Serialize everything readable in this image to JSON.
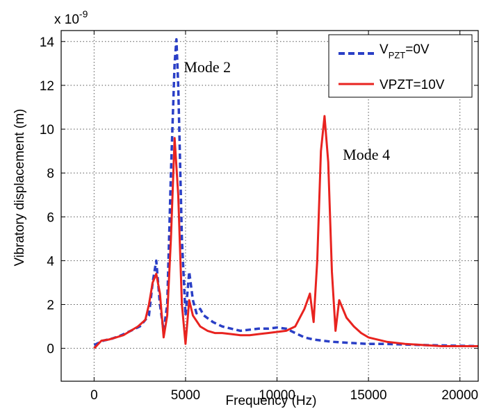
{
  "chart_data": {
    "type": "line",
    "title": "",
    "xlabel": "Frequency (Hz)",
    "ylabel": "Vibratory displacement (m)",
    "y_multiplier": "x 10",
    "y_multiplier_exponent": "-9",
    "xlim": [
      -1800,
      21000
    ],
    "ylim": [
      -1.5,
      14.5
    ],
    "x_ticks": [
      0,
      5000,
      10000,
      15000,
      20000
    ],
    "x_tick_labels": [
      "0",
      "5000",
      "10000",
      "15000",
      "20000"
    ],
    "y_ticks": [
      0,
      2,
      4,
      6,
      8,
      10,
      12,
      14
    ],
    "y_tick_labels": [
      "0",
      "2",
      "4",
      "6",
      "8",
      "10",
      "12",
      "14"
    ],
    "grid": true,
    "legend_position": "top-right",
    "series": [
      {
        "name_main": "V",
        "name_sub": "PZT",
        "name_rest": "=0V",
        "color": "#2a3fc6",
        "style": "dashed",
        "x": [
          0,
          500,
          1000,
          1500,
          2000,
          2500,
          2800,
          3000,
          3200,
          3400,
          3600,
          3800,
          4000,
          4200,
          4400,
          4500,
          4600,
          4800,
          5000,
          5200,
          5400,
          5600,
          5800,
          6000,
          6500,
          7000,
          7500,
          8000,
          8500,
          9000,
          9500,
          10000,
          10500,
          11000,
          11500,
          12000,
          12500,
          13000,
          14000,
          15000,
          16000,
          18000,
          21000
        ],
        "y": [
          0.15,
          0.35,
          0.45,
          0.6,
          0.8,
          1.0,
          1.3,
          1.5,
          3.0,
          4.0,
          2.0,
          0.8,
          2.0,
          8.0,
          13.0,
          14.1,
          12.0,
          5.0,
          1.5,
          3.5,
          2.2,
          1.6,
          1.8,
          1.5,
          1.2,
          1.0,
          0.9,
          0.8,
          0.85,
          0.9,
          0.9,
          0.95,
          0.9,
          0.7,
          0.5,
          0.4,
          0.35,
          0.3,
          0.25,
          0.2,
          0.2,
          0.15,
          0.1
        ]
      },
      {
        "name": "VPZT=10V",
        "color": "#e8231f",
        "style": "solid",
        "x": [
          0,
          400,
          800,
          1200,
          1600,
          2000,
          2400,
          2800,
          3000,
          3200,
          3400,
          3600,
          3800,
          4000,
          4200,
          4400,
          4600,
          4800,
          5000,
          5200,
          5400,
          5800,
          6200,
          6600,
          7000,
          7500,
          8000,
          8500,
          9000,
          9500,
          10000,
          10500,
          11000,
          11500,
          11800,
          12000,
          12200,
          12400,
          12600,
          12800,
          13000,
          13200,
          13400,
          13800,
          14200,
          14600,
          15000,
          16000,
          17000,
          18000,
          19000,
          20000,
          21000
        ],
        "y": [
          0.0,
          0.35,
          0.4,
          0.5,
          0.6,
          0.8,
          1.0,
          1.3,
          2.0,
          3.0,
          3.4,
          2.5,
          0.5,
          1.5,
          5.0,
          9.6,
          7.0,
          2.0,
          0.2,
          2.2,
          1.5,
          1.0,
          0.8,
          0.7,
          0.7,
          0.65,
          0.6,
          0.6,
          0.65,
          0.7,
          0.75,
          0.8,
          1.0,
          1.8,
          2.5,
          1.2,
          4.0,
          9.0,
          10.6,
          8.5,
          3.5,
          0.8,
          2.2,
          1.4,
          1.0,
          0.7,
          0.5,
          0.3,
          0.2,
          0.15,
          0.1,
          0.1,
          0.1
        ]
      }
    ],
    "annotations": [
      {
        "text": "Mode 2",
        "x": 4900,
        "y": 12.6
      },
      {
        "text": "Mode 4",
        "x": 13600,
        "y": 8.6
      }
    ]
  }
}
